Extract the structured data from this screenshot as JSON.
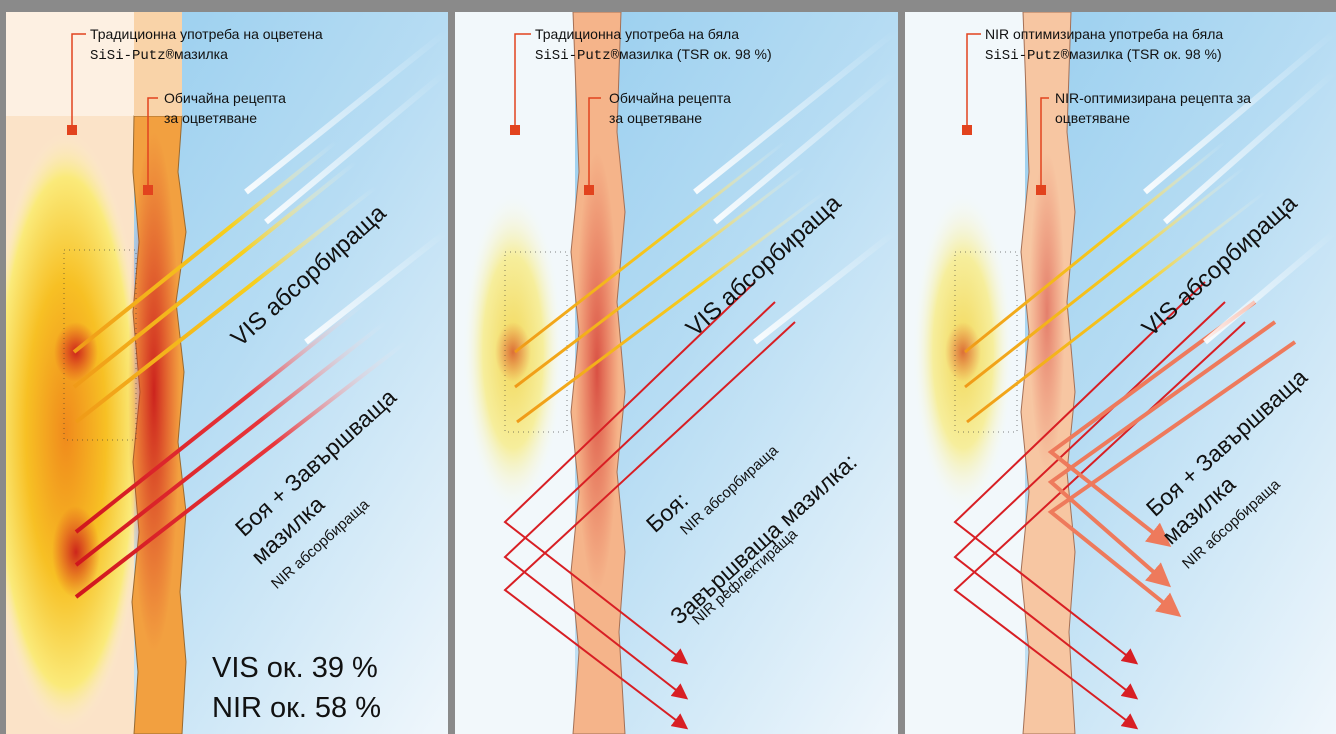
{
  "colors": {
    "sky": "#8cc8ec",
    "plaster_colored": "#f4a245",
    "plaster_white": "#f6c49c",
    "heat_core": "#d8291e",
    "vis_ray": "#f4c11a",
    "nir_ray": "#d81f24",
    "marker": "#e2431e"
  },
  "panels": [
    {
      "top_label_1": "Традиционна употреба на оцветена",
      "brand": "SiSi-Putz®",
      "top_label_2": "мазилка",
      "recipe_1": "Обичайна рецепта",
      "recipe_2": "за оцветяване",
      "vis_label": "VIS абсорбираща",
      "nir_main_1": "Боя + Завършваща",
      "nir_main_2": "мазилка",
      "nir_sub": "NIR абсорбираща",
      "stat_vis": "VIS ок. 39 %",
      "stat_nir": "NIR ок. 58 %"
    },
    {
      "top_label_1": "Традиционна употреба на бяла",
      "brand": "SiSi-Putz®",
      "top_label_2": "мазилка (TSR ок. 98 %)",
      "recipe_1": "Обичайна рецепта",
      "recipe_2": "за оцветяване",
      "vis_label": "VIS абсорбираща",
      "paint_label": "Боя:",
      "paint_sub": "NIR абсорбираща",
      "finish_label": "Завършваща мазилка:",
      "finish_sub": "NIR рефлектираща"
    },
    {
      "top_label_1": "NIR оптимизирана употреба на бяла",
      "brand": "SiSi-Putz®",
      "top_label_2": "мазилка (TSR ок. 98 %)",
      "recipe_1": "NIR-оптимизирана рецепта за",
      "recipe_2": "оцветяване",
      "vis_label": "VIS абсорбираща",
      "nir_main_1": "Боя + Завършваща",
      "nir_main_2": "мазилка",
      "nir_sub": "NIR абсорбираща"
    }
  ]
}
